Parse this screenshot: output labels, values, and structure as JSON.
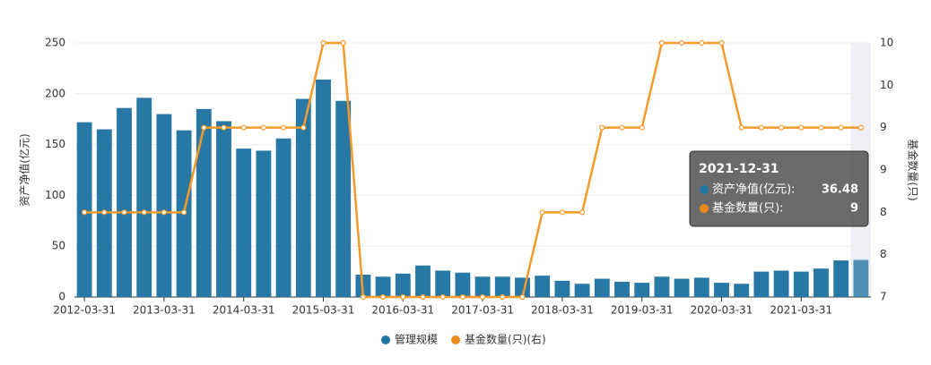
{
  "chart_data": {
    "type": "bar",
    "y_label": "资产净值(亿元)",
    "y2_label": "基金数量(只)",
    "categories": [
      "2012-03-31",
      null,
      null,
      null,
      "2013-03-31",
      null,
      null,
      null,
      "2014-03-31",
      null,
      null,
      null,
      "2015-03-31",
      null,
      null,
      null,
      "2016-03-31",
      null,
      null,
      null,
      "2017-03-31",
      null,
      null,
      null,
      "2018-03-31",
      null,
      null,
      null,
      "2019-03-31",
      null,
      null,
      null,
      "2020-03-31",
      null,
      null,
      null,
      "2021-03-31",
      null,
      null,
      null
    ],
    "series": [
      {
        "name": "管理规模",
        "type": "bar",
        "color": "#2878a5",
        "legend_color": "#1f77a4",
        "values": [
          172,
          165,
          186,
          196,
          180,
          164,
          185,
          173,
          146,
          144,
          156,
          195,
          214,
          193,
          22,
          20,
          23,
          31,
          26,
          24,
          20,
          20,
          19,
          21,
          16,
          13,
          18,
          15,
          14,
          20,
          18,
          19,
          14,
          13,
          25,
          26,
          25,
          28,
          36,
          36.48
        ]
      },
      {
        "name": "基金数量(只)(右)",
        "type": "line",
        "axis": "y2",
        "color": "#f39a2b",
        "legend_color": "#ee8a1d",
        "values": [
          8,
          8,
          8,
          8,
          8,
          8,
          9,
          9,
          9,
          9,
          9,
          9,
          10,
          10,
          7,
          7,
          7,
          7,
          7,
          7,
          7,
          7,
          7,
          8,
          8,
          8,
          9,
          9,
          9,
          10,
          10,
          10,
          10,
          9,
          9,
          9,
          9,
          9,
          9,
          9
        ]
      }
    ],
    "ylim": [
      0,
      250
    ],
    "yticks": [
      0,
      50,
      100,
      150,
      200,
      250
    ],
    "y2lim": [
      7,
      10
    ],
    "y2ticks": [
      7,
      {
        "value": 7.5,
        "label": "8"
      },
      8,
      {
        "value": 8.5,
        "label": "9"
      },
      9,
      {
        "value": 9.5,
        "label": "10"
      },
      10
    ],
    "grid": true,
    "tooltip": {
      "title": "2021-12-31",
      "index": 39,
      "labels": [
        "资产净值(亿元):",
        "基金数量(只):"
      ]
    }
  }
}
